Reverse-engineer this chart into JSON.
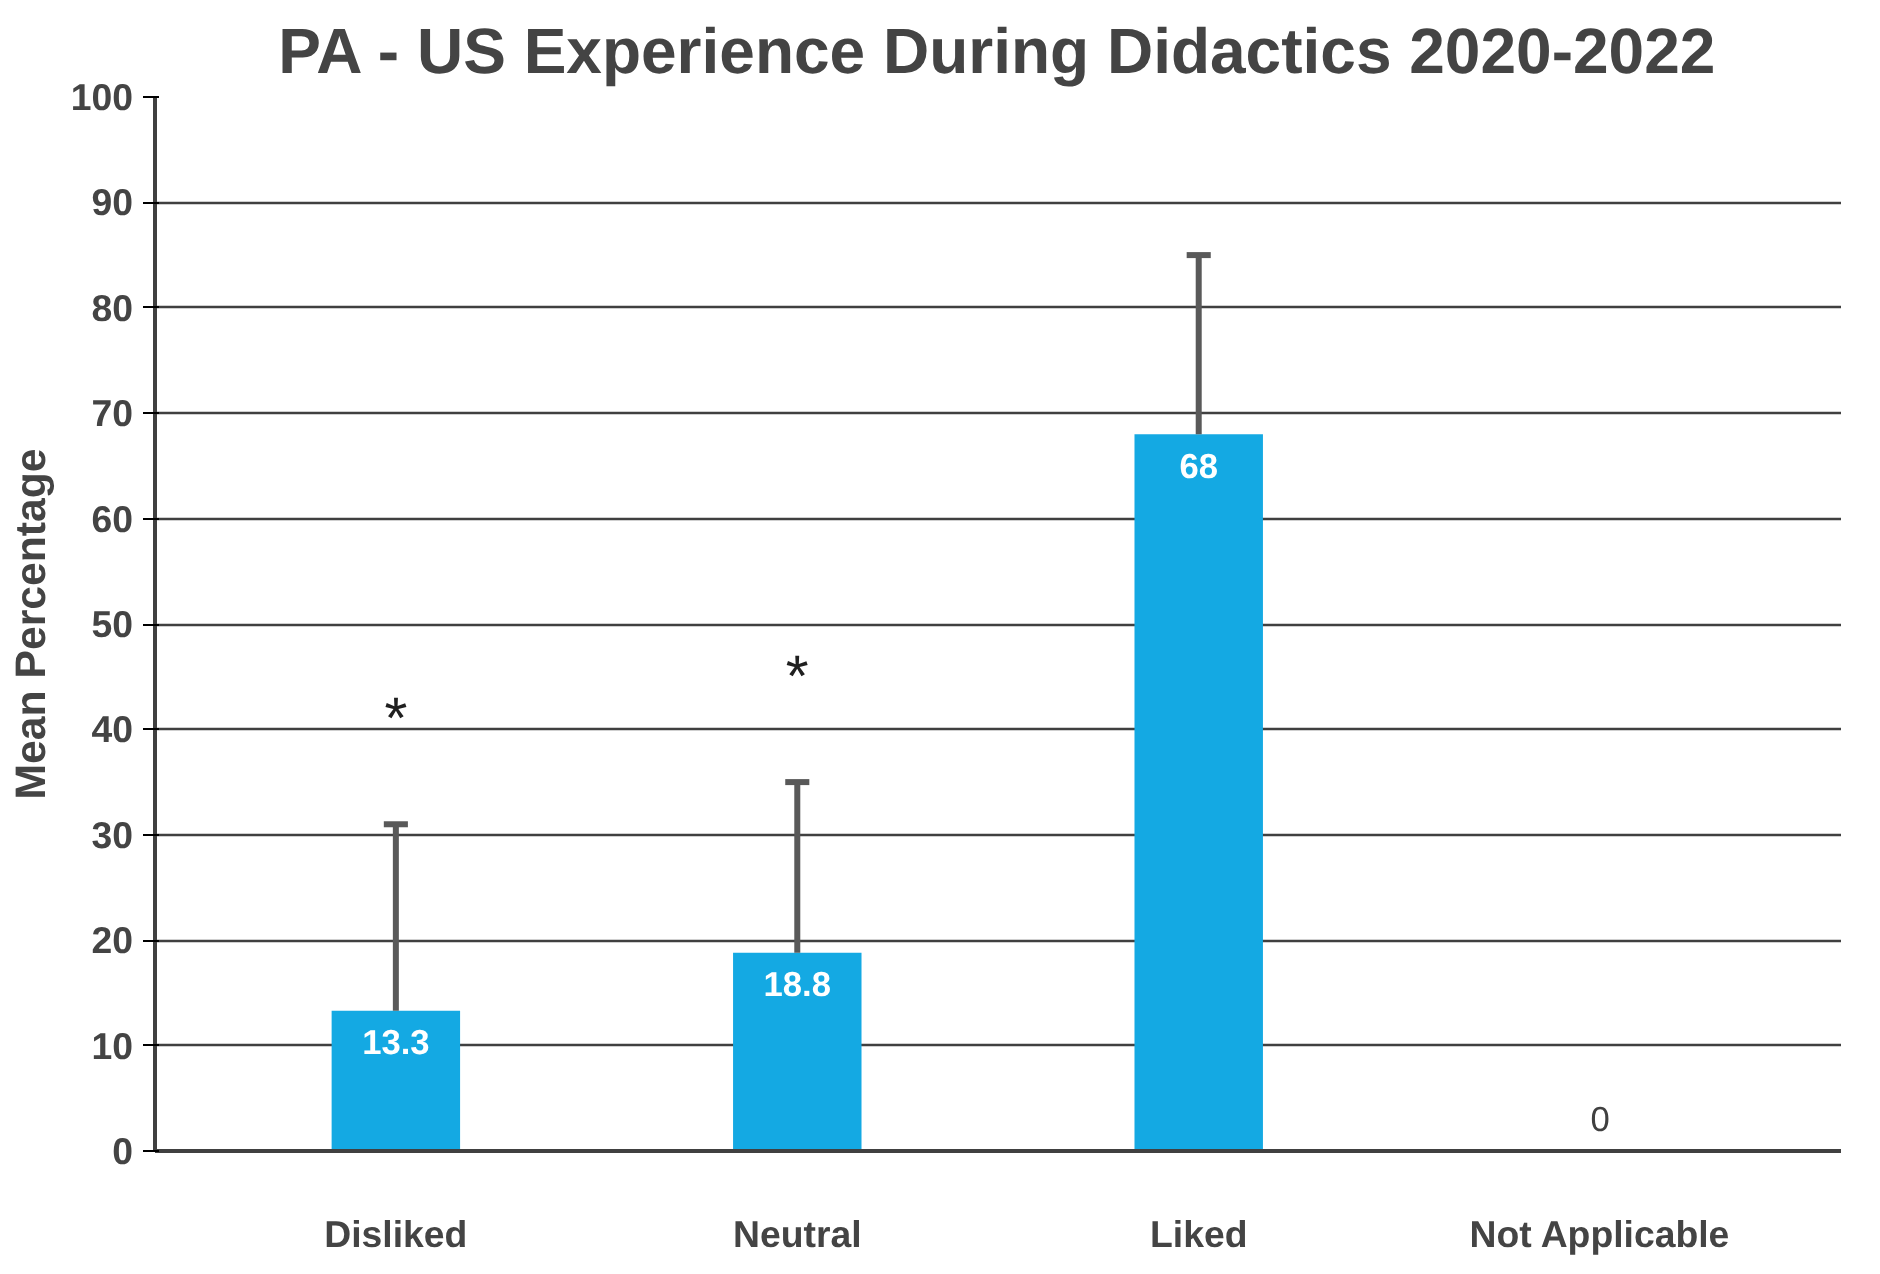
{
  "chart_data": {
    "type": "bar",
    "title": "PA - US Experience During Didactics 2020-2022",
    "ylabel": "Mean Percentage",
    "categories": [
      "Disliked",
      "Neutral",
      "Liked",
      "Not Applicable"
    ],
    "values": [
      13.3,
      18.8,
      68,
      0
    ],
    "color": "#14a9e3",
    "errors": [
      [
        13.3,
        31
      ],
      [
        18.8,
        35
      ],
      [
        68,
        85
      ],
      null
    ],
    "data_labels": true,
    "ylim": [
      0,
      100
    ],
    "yticks": [
      0,
      10,
      20,
      30,
      40,
      50,
      60,
      70,
      80,
      90,
      100
    ],
    "grid": "y",
    "annotations": [
      "*",
      "*"
    ]
  }
}
